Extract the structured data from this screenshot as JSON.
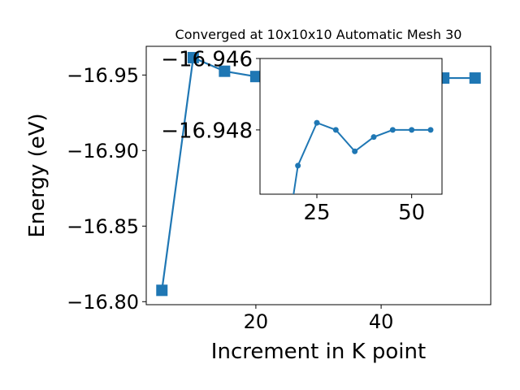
{
  "chart_data": [
    {
      "type": "line",
      "title": "Converged at 10x10x10 Automatic Mesh 30",
      "xlabel": "Increment in K point",
      "ylabel": "Energy (eV)",
      "xlim": [
        2.5,
        57.5
      ],
      "ylim": [
        -16.969,
        -16.798
      ],
      "y_inverted": true,
      "grid": false,
      "marker": "square",
      "color": "#1f77b4",
      "x_ticks": [
        20,
        40
      ],
      "x_tick_labels": [
        "20",
        "40"
      ],
      "y_ticks": [
        -16.8,
        -16.85,
        -16.9,
        -16.95
      ],
      "y_tick_labels": [
        "−16.80",
        "−16.85",
        "−16.90",
        "−16.95"
      ],
      "series": [
        {
          "x": [
            5,
            10,
            15,
            20,
            25,
            30,
            35,
            40,
            45,
            50,
            55
          ],
          "y": [
            -16.8075,
            -16.9615,
            -16.9525,
            -16.949,
            -16.9478,
            -16.948,
            -16.9486,
            -16.9482,
            -16.948,
            -16.948,
            -16.948
          ]
        }
      ]
    },
    {
      "type": "line",
      "title": "",
      "xlabel": "",
      "ylabel": "",
      "xlim": [
        10,
        58
      ],
      "ylim": [
        -16.946,
        -16.9498
      ],
      "y_inverted": true,
      "grid": false,
      "marker": "circle",
      "color": "#1f77b4",
      "x_ticks": [
        25,
        50
      ],
      "x_tick_labels": [
        "25",
        "50"
      ],
      "y_ticks": [
        -16.948,
        -16.946
      ],
      "y_tick_labels": [
        "−16.948",
        "−16.946"
      ],
      "series": [
        {
          "x": [
            15,
            20,
            25,
            30,
            35,
            40,
            45,
            50,
            55
          ],
          "y": [
            -16.9525,
            -16.949,
            -16.9478,
            -16.948,
            -16.9486,
            -16.9482,
            -16.948,
            -16.948,
            -16.948
          ]
        }
      ]
    }
  ]
}
